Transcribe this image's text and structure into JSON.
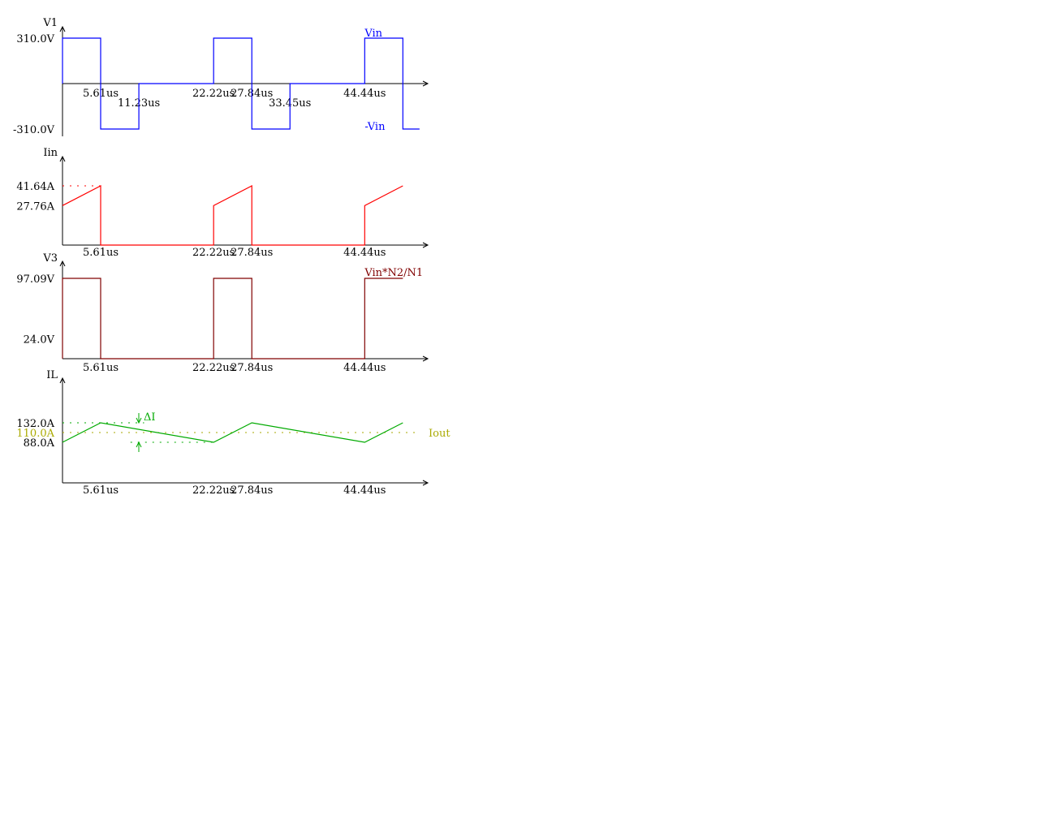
{
  "colors": {
    "axis": "#000000",
    "background": "#ffffff",
    "vin": "#0000ff",
    "iin": "#ff0000",
    "v3": "#800000",
    "il": "#00aa00",
    "iout": "#aaaa00"
  },
  "chart_data": [
    {
      "type": "line",
      "ylabel": "V1",
      "x_ticks": [
        {
          "value": 5.61,
          "label": "5.61us"
        },
        {
          "value": 11.23,
          "label": "11.23us"
        },
        {
          "value": 22.22,
          "label": "22.22us"
        },
        {
          "value": 27.84,
          "label": "27.84us"
        },
        {
          "value": 33.45,
          "label": "33.45us"
        },
        {
          "value": 44.44,
          "label": "44.44us"
        }
      ],
      "y_ticks": [
        {
          "value": 310,
          "label": "310.0V"
        },
        {
          "value": -310,
          "label": "-310.0V"
        }
      ],
      "xlim": [
        0,
        52
      ],
      "ylim": [
        -350,
        370
      ],
      "series": [
        {
          "color": "#0000ff",
          "x": [
            0,
            0,
            5.61,
            5.61,
            11.23,
            11.23,
            22.22,
            22.22,
            27.84,
            27.84,
            33.45,
            33.45,
            44.44,
            44.44,
            50.05,
            50.05,
            52.5
          ],
          "y": [
            0,
            310,
            310,
            -310,
            -310,
            0,
            0,
            310,
            310,
            -310,
            -310,
            0,
            0,
            310,
            310,
            -310,
            -310
          ]
        }
      ],
      "annotations": [
        {
          "text": "Vin",
          "x": 44.44,
          "y": 310,
          "color": "#0000ff"
        },
        {
          "text": "-Vin",
          "x": 44.44,
          "y": -310,
          "color": "#0000ff"
        }
      ]
    },
    {
      "type": "line",
      "ylabel": "Iin",
      "x_ticks": [
        {
          "value": 5.61,
          "label": "5.61us"
        },
        {
          "value": 22.22,
          "label": "22.22us"
        },
        {
          "value": 27.84,
          "label": "27.84us"
        },
        {
          "value": 44.44,
          "label": "44.44us"
        }
      ],
      "y_ticks": [
        {
          "value": 41.64,
          "label": "41.64A"
        },
        {
          "value": 27.76,
          "label": "27.76A"
        }
      ],
      "xlim": [
        0,
        52
      ],
      "ylim": [
        0,
        50
      ],
      "series": [
        {
          "color": "#ff0000",
          "x": [
            0,
            5.61,
            5.61,
            22.22,
            22.22,
            27.84,
            27.84,
            44.44,
            44.44,
            50.05
          ],
          "y": [
            27.76,
            41.64,
            0,
            0,
            27.76,
            41.64,
            0,
            0,
            27.76,
            41.64
          ]
        }
      ],
      "reference_lines": [
        {
          "y": 41.64,
          "x_range": [
            0,
            5.61
          ],
          "color": "#ff0000",
          "style": "dotted"
        }
      ]
    },
    {
      "type": "line",
      "ylabel": "V3",
      "x_ticks": [
        {
          "value": 5.61,
          "label": "5.61us"
        },
        {
          "value": 22.22,
          "label": "22.22us"
        },
        {
          "value": 27.84,
          "label": "27.84us"
        },
        {
          "value": 44.44,
          "label": "44.44us"
        }
      ],
      "y_ticks": [
        {
          "value": 97.09,
          "label": "97.09V"
        },
        {
          "value": 24.0,
          "label": "24.0V"
        }
      ],
      "xlim": [
        0,
        52
      ],
      "ylim": [
        0,
        110
      ],
      "series": [
        {
          "color": "#800000",
          "x": [
            0,
            0,
            5.61,
            5.61,
            22.22,
            22.22,
            27.84,
            27.84,
            44.44,
            44.44,
            50.05
          ],
          "y": [
            0,
            97.09,
            97.09,
            0,
            0,
            97.09,
            97.09,
            0,
            0,
            97.09,
            97.09
          ]
        }
      ],
      "annotations": [
        {
          "text": "Vin*N2/N1",
          "x": 44.44,
          "y": 97.09,
          "color": "#800000"
        }
      ]
    },
    {
      "type": "line",
      "ylabel": "IL",
      "x_ticks": [
        {
          "value": 5.61,
          "label": "5.61us"
        },
        {
          "value": 22.22,
          "label": "22.22us"
        },
        {
          "value": 27.84,
          "label": "27.84us"
        },
        {
          "value": 44.44,
          "label": "44.44us"
        }
      ],
      "y_ticks": [
        {
          "value": 132.0,
          "label": "132.0A"
        },
        {
          "value": 110.0,
          "label": "110.0A",
          "color": "#aaaa00"
        },
        {
          "value": 88.0,
          "label": "88.0A"
        }
      ],
      "xlim": [
        0,
        52
      ],
      "ylim": [
        0,
        220
      ],
      "series": [
        {
          "color": "#00aa00",
          "x": [
            0,
            5.61,
            22.22,
            27.84,
            44.44,
            50.05
          ],
          "y": [
            88,
            132,
            88,
            132,
            88,
            132
          ]
        }
      ],
      "reference_lines": [
        {
          "y": 132,
          "x_range": [
            0,
            12
          ],
          "color": "#00aa00",
          "style": "dotted"
        },
        {
          "y": 88,
          "x_range": [
            10,
            22.22
          ],
          "color": "#00aa00",
          "style": "dotted"
        },
        {
          "y": 110,
          "x_range": [
            0,
            52
          ],
          "color": "#aaaa00",
          "style": "dotted"
        }
      ],
      "annotations": [
        {
          "text": "ΔI",
          "x": 11.5,
          "y": 132,
          "color": "#00aa00"
        },
        {
          "text": "Iout",
          "x": 52,
          "y": 110,
          "color": "#aaaa00"
        }
      ]
    }
  ]
}
